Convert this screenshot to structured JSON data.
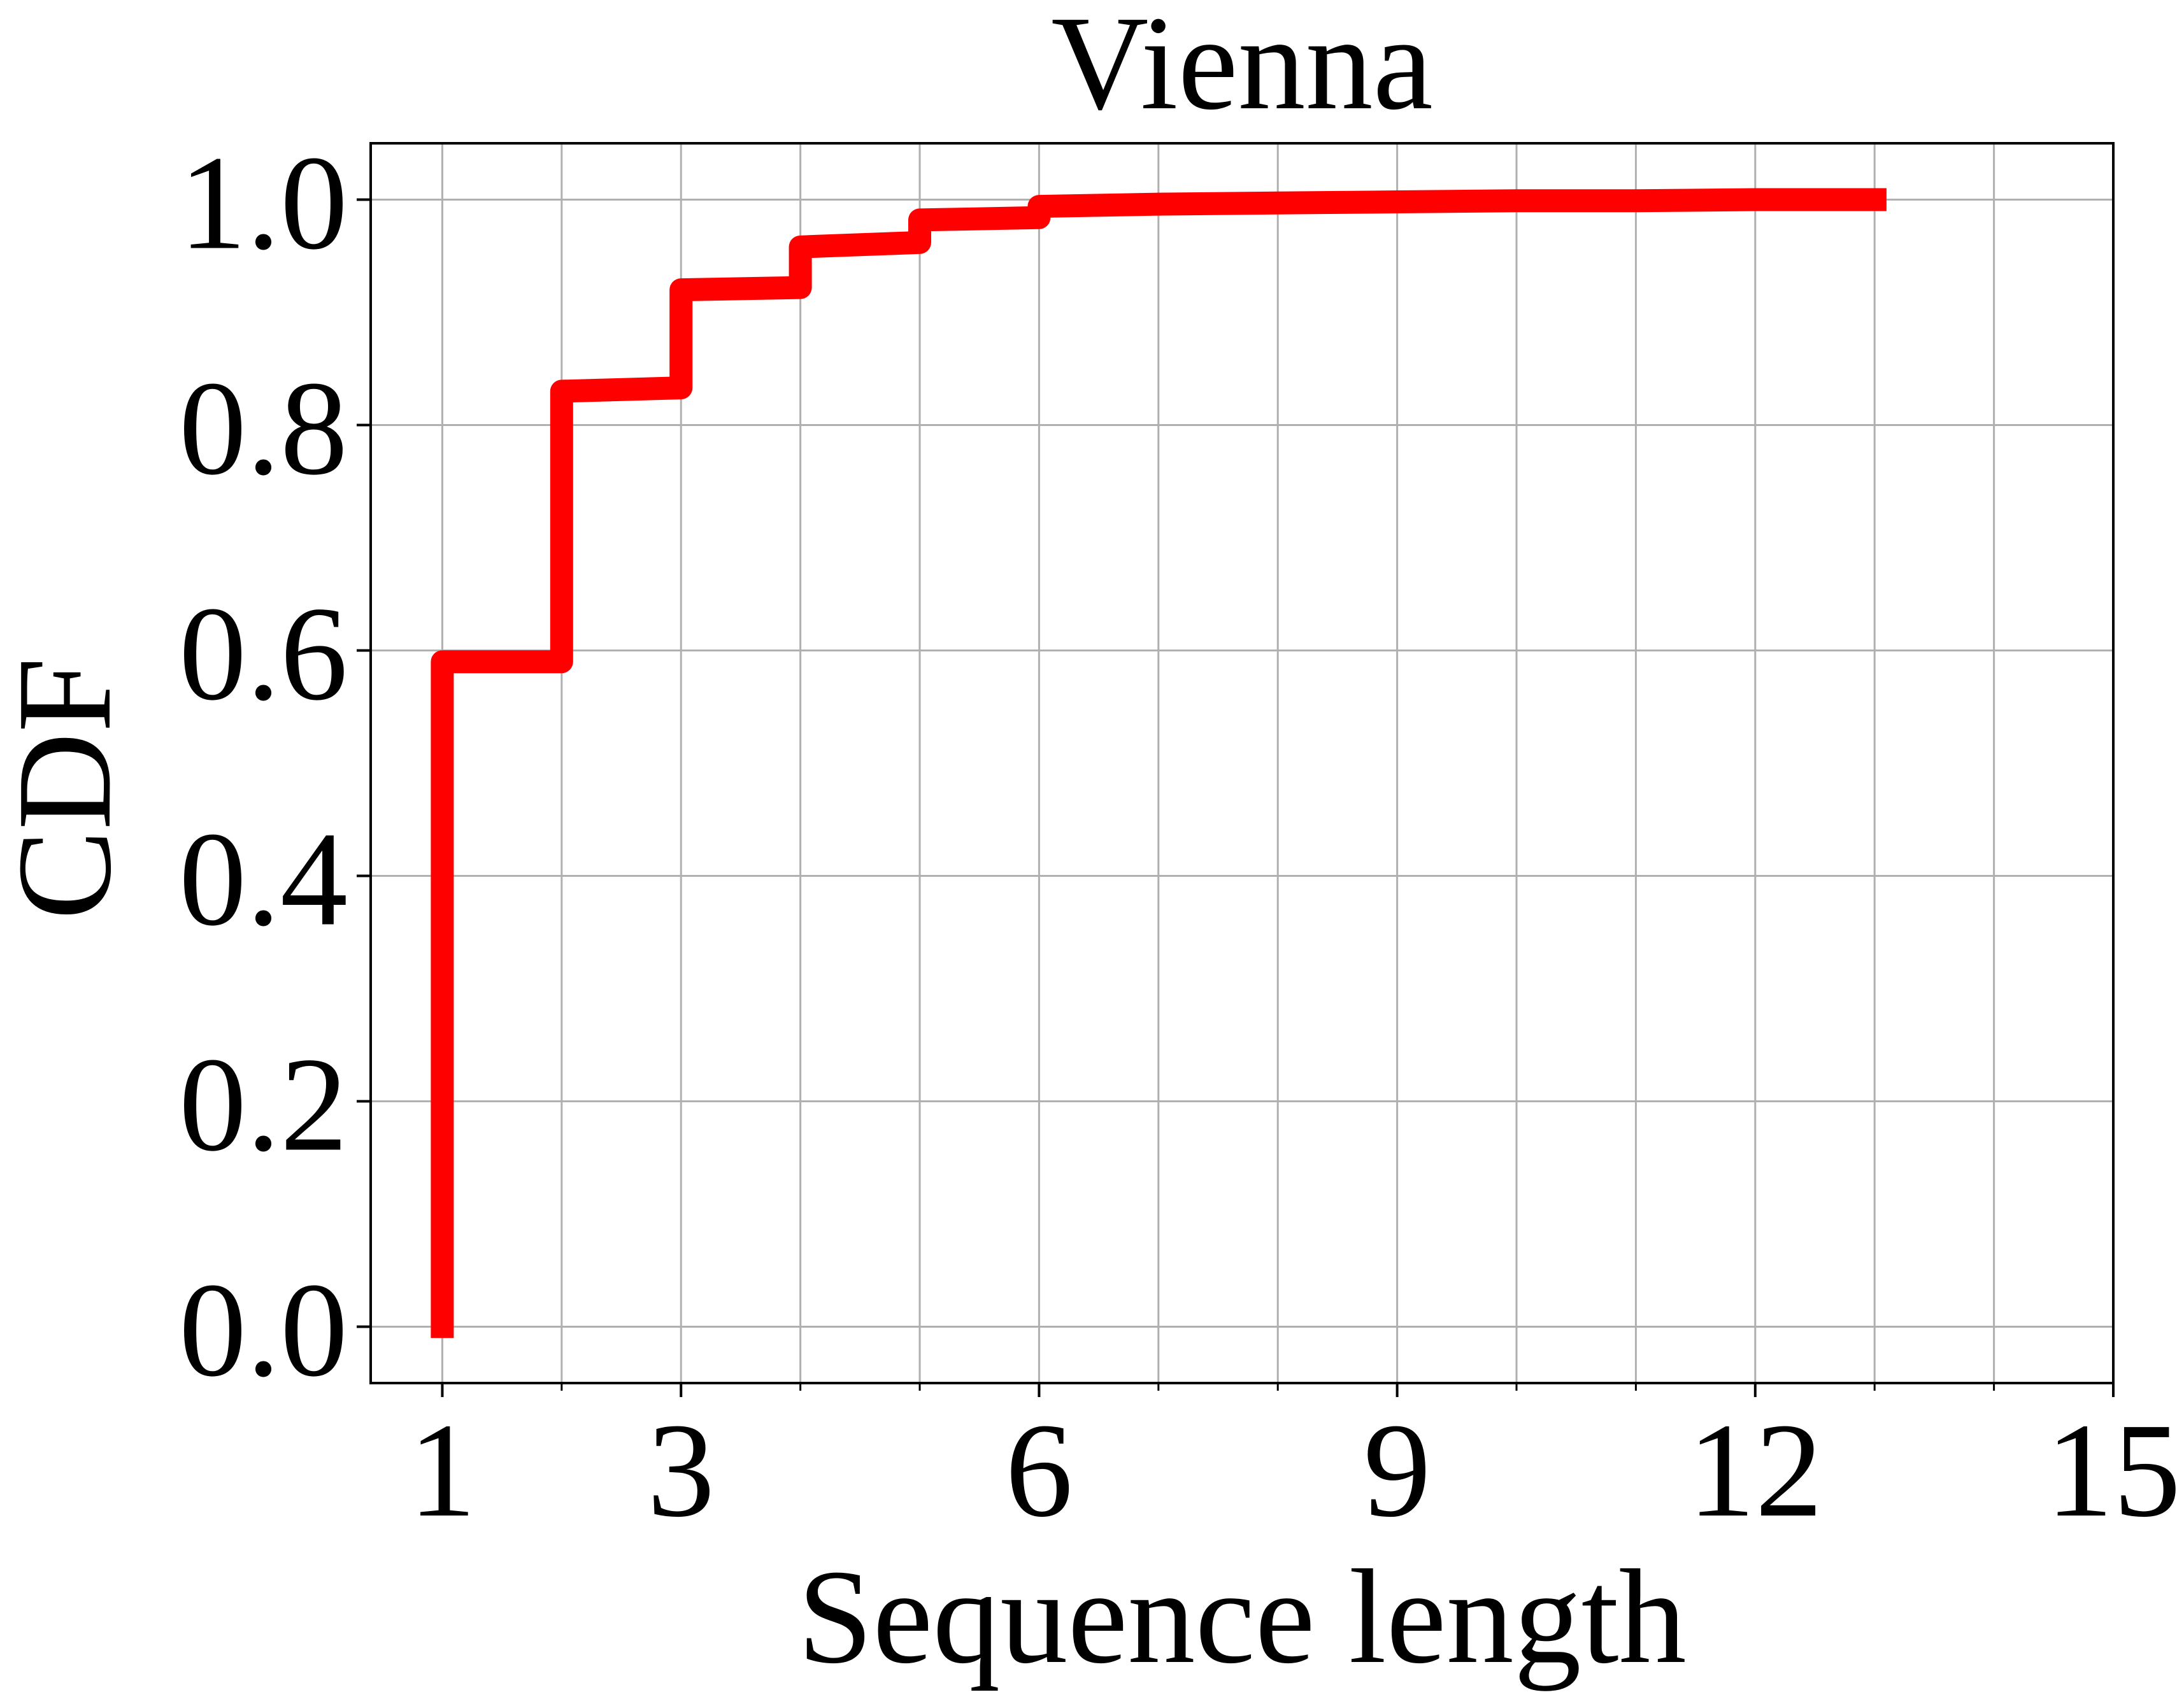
{
  "chart_data": {
    "type": "line",
    "step": true,
    "title": "Vienna",
    "xlabel": "Sequence length",
    "ylabel": "CDF",
    "xlim": [
      0.4,
      15
    ],
    "ylim": [
      -0.05,
      1.05
    ],
    "x_ticks": [
      1,
      3,
      6,
      9,
      12,
      15
    ],
    "x_tick_labels": [
      "1",
      "3",
      "6",
      "9",
      "12",
      "15"
    ],
    "x_minor_ticks": [
      2,
      4,
      5,
      7,
      8,
      10,
      11,
      13,
      14
    ],
    "y_ticks": [
      0.0,
      0.2,
      0.4,
      0.6,
      0.8,
      1.0
    ],
    "y_tick_labels": [
      "0.0",
      "0.2",
      "0.4",
      "0.6",
      "0.8",
      "1.0"
    ],
    "grid": true,
    "series": [
      {
        "color": "#ff0000",
        "x": [
          1,
          1,
          2,
          2,
          3,
          3,
          4,
          4,
          5,
          5,
          6,
          6,
          7,
          8,
          9,
          10,
          11,
          12,
          13.1
        ],
        "y": [
          -0.01,
          0.59,
          0.59,
          0.83,
          0.833,
          0.92,
          0.922,
          0.958,
          0.962,
          0.982,
          0.984,
          0.994,
          0.996,
          0.997,
          0.998,
          0.999,
          0.999,
          1.0,
          1.0
        ]
      }
    ]
  }
}
